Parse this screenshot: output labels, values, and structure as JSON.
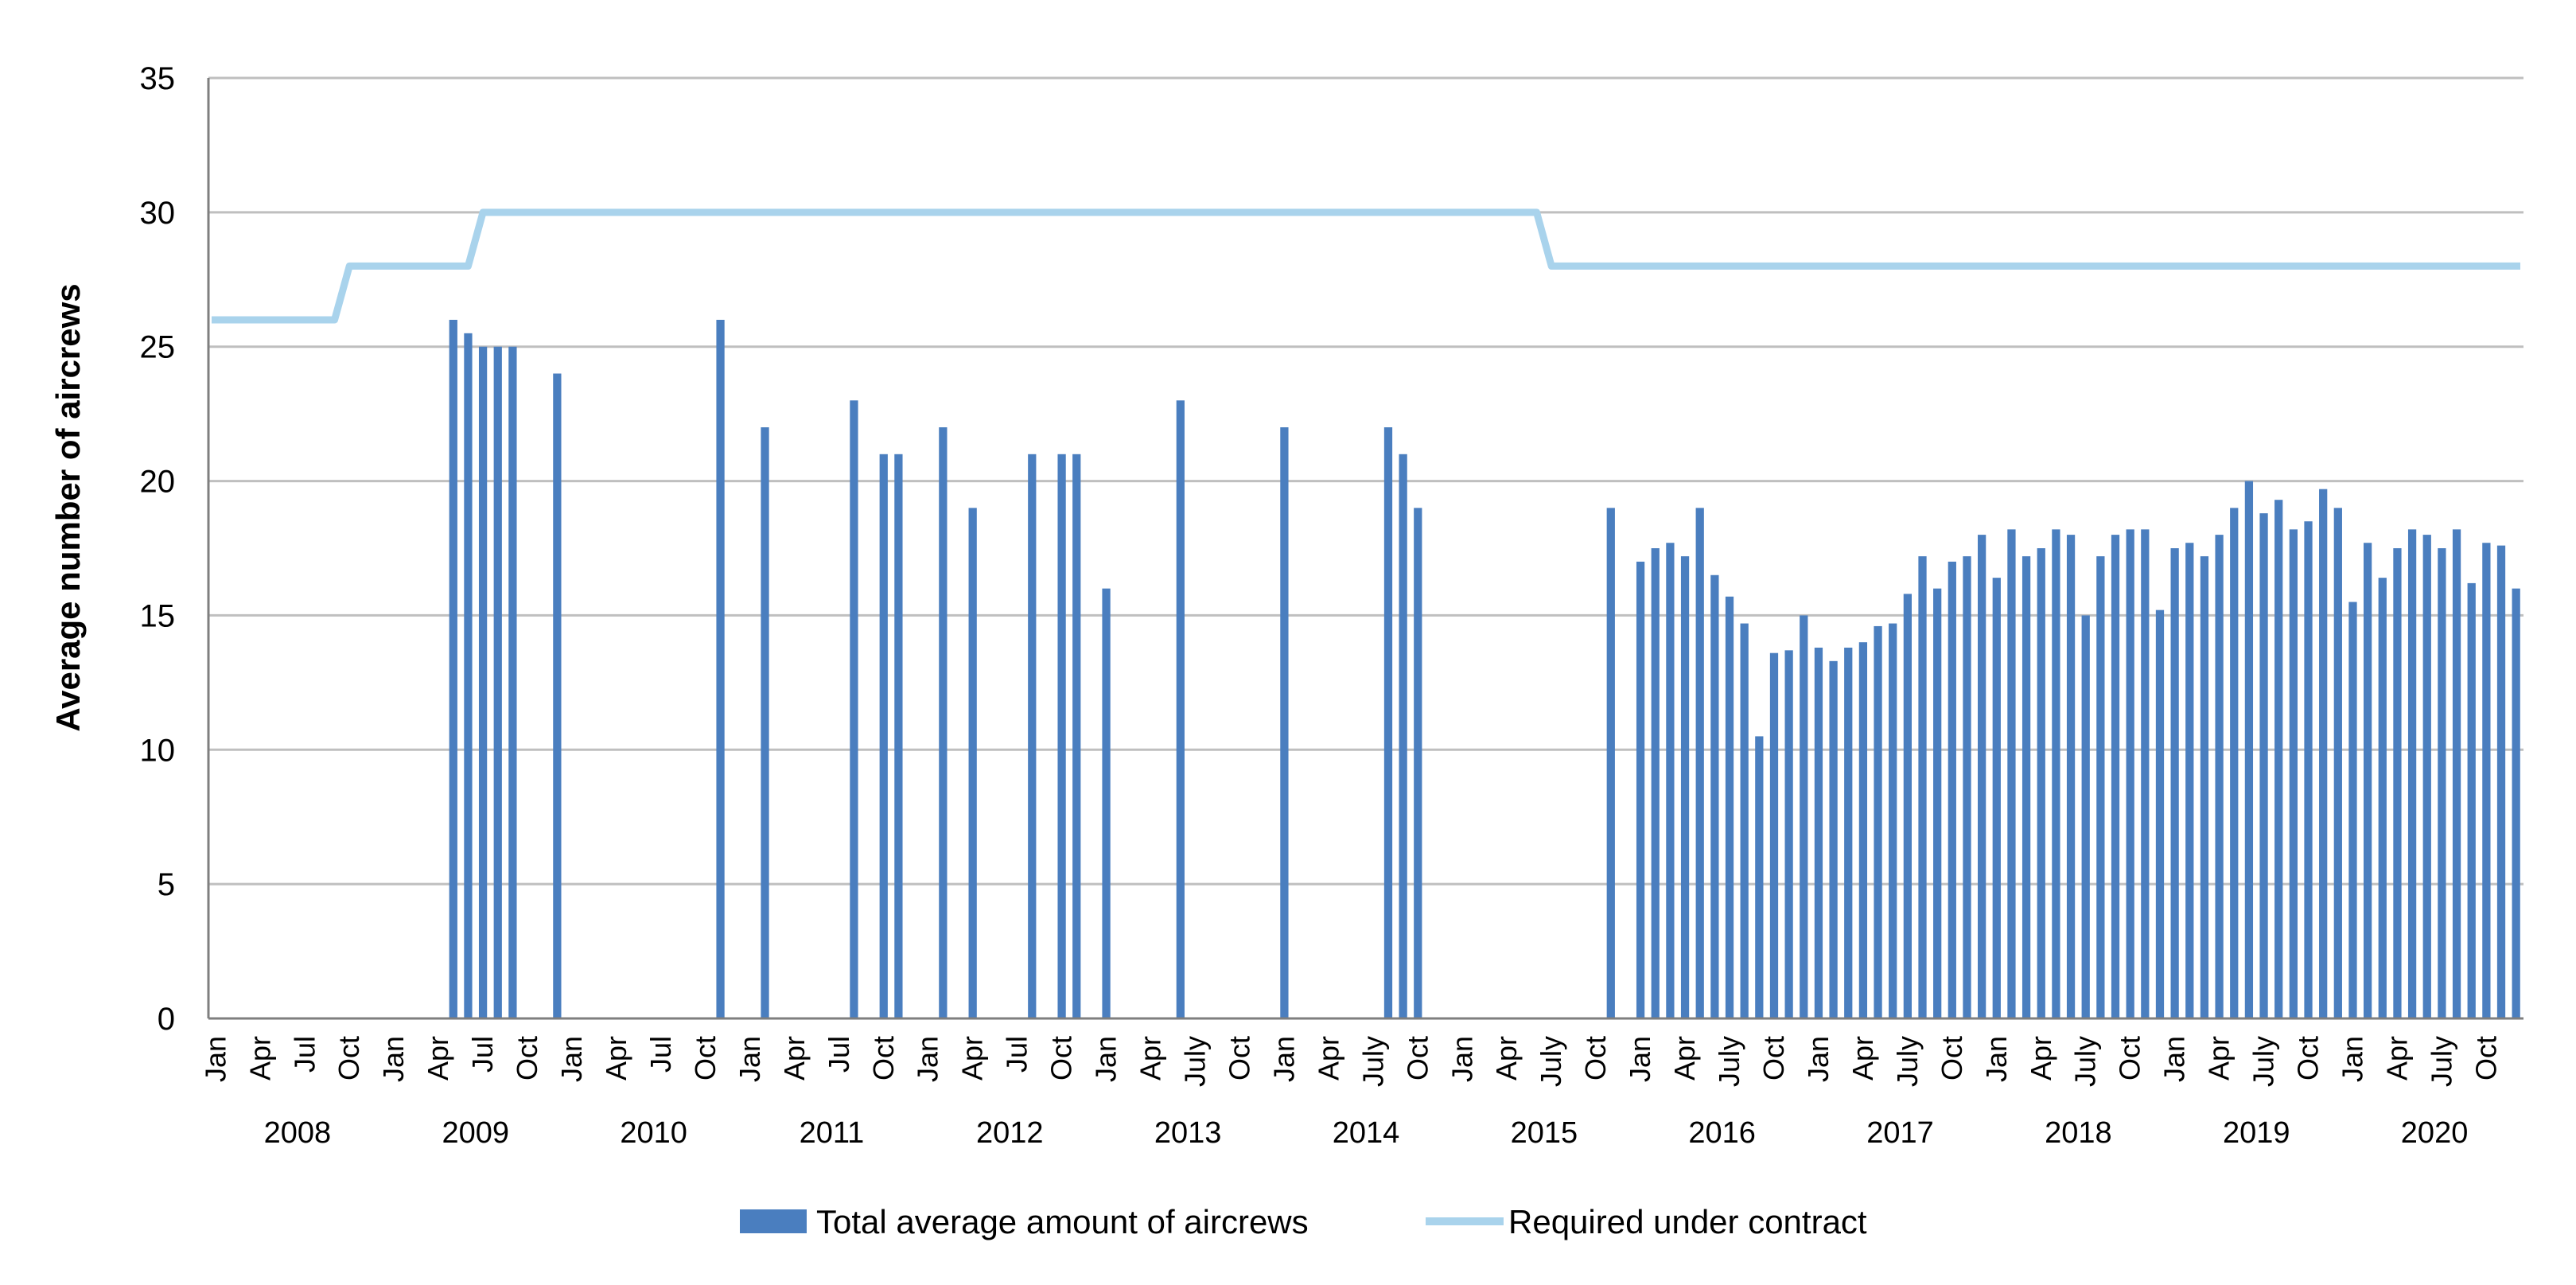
{
  "chart_data": {
    "type": "bar",
    "ylabel": "Average number of aircrews",
    "ylim": [
      0,
      35
    ],
    "yticks": [
      0,
      5,
      10,
      15,
      20,
      25,
      30,
      35
    ],
    "grid": true,
    "legend_position": "bottom",
    "x_start": "2008-01",
    "x_end": "2020-12",
    "colors": {
      "bars": "#4a7ebf",
      "line": "#a9d3ec",
      "grid": "#bfbfbf",
      "axis": "#7f7f7f"
    },
    "tick_labels": [
      {
        "month": "2008-01",
        "label": "Jan"
      },
      {
        "month": "2008-04",
        "label": "Apr"
      },
      {
        "month": "2008-07",
        "label": "Jul"
      },
      {
        "month": "2008-10",
        "label": "Oct"
      },
      {
        "month": "2009-01",
        "label": "Jan"
      },
      {
        "month": "2009-04",
        "label": "Apr"
      },
      {
        "month": "2009-07",
        "label": "Jul"
      },
      {
        "month": "2009-10",
        "label": "Oct"
      },
      {
        "month": "2010-01",
        "label": "Jan"
      },
      {
        "month": "2010-04",
        "label": "Apr"
      },
      {
        "month": "2010-07",
        "label": "Jul"
      },
      {
        "month": "2010-10",
        "label": "Oct"
      },
      {
        "month": "2011-01",
        "label": "Jan"
      },
      {
        "month": "2011-04",
        "label": "Apr"
      },
      {
        "month": "2011-07",
        "label": "Jul"
      },
      {
        "month": "2011-10",
        "label": "Oct"
      },
      {
        "month": "2012-01",
        "label": "Jan"
      },
      {
        "month": "2012-04",
        "label": "Apr"
      },
      {
        "month": "2012-07",
        "label": "Jul"
      },
      {
        "month": "2012-10",
        "label": "Oct"
      },
      {
        "month": "2013-01",
        "label": "Jan"
      },
      {
        "month": "2013-04",
        "label": "Apr"
      },
      {
        "month": "2013-07",
        "label": "July"
      },
      {
        "month": "2013-10",
        "label": "Oct"
      },
      {
        "month": "2014-01",
        "label": "Jan"
      },
      {
        "month": "2014-04",
        "label": "Apr"
      },
      {
        "month": "2014-07",
        "label": "July"
      },
      {
        "month": "2014-10",
        "label": "Oct"
      },
      {
        "month": "2015-01",
        "label": "Jan"
      },
      {
        "month": "2015-04",
        "label": "Apr"
      },
      {
        "month": "2015-07",
        "label": "July"
      },
      {
        "month": "2015-10",
        "label": "Oct"
      },
      {
        "month": "2016-01",
        "label": "Jan"
      },
      {
        "month": "2016-04",
        "label": "Apr"
      },
      {
        "month": "2016-07",
        "label": "July"
      },
      {
        "month": "2016-10",
        "label": "Oct"
      },
      {
        "month": "2017-01",
        "label": "Jan"
      },
      {
        "month": "2017-04",
        "label": "Apr"
      },
      {
        "month": "2017-07",
        "label": "July"
      },
      {
        "month": "2017-10",
        "label": "Oct"
      },
      {
        "month": "2018-01",
        "label": "Jan"
      },
      {
        "month": "2018-04",
        "label": "Apr"
      },
      {
        "month": "2018-07",
        "label": "July"
      },
      {
        "month": "2018-10",
        "label": "Oct"
      },
      {
        "month": "2019-01",
        "label": "Jan"
      },
      {
        "month": "2019-04",
        "label": "Apr"
      },
      {
        "month": "2019-07",
        "label": "July"
      },
      {
        "month": "2019-10",
        "label": "Oct"
      },
      {
        "month": "2020-01",
        "label": "Jan"
      },
      {
        "month": "2020-04",
        "label": "Apr"
      },
      {
        "month": "2020-07",
        "label": "July"
      },
      {
        "month": "2020-10",
        "label": "Oct"
      }
    ],
    "years": [
      "2008",
      "2009",
      "2010",
      "2011",
      "2012",
      "2013",
      "2014",
      "2015",
      "2016",
      "2017",
      "2018",
      "2019",
      "2020"
    ],
    "series": [
      {
        "name": "Total average amount of aircrews",
        "kind": "bar",
        "points": [
          {
            "month": "2009-05",
            "value": 26
          },
          {
            "month": "2009-06",
            "value": 25.5
          },
          {
            "month": "2009-07",
            "value": 25
          },
          {
            "month": "2009-08",
            "value": 25
          },
          {
            "month": "2009-09",
            "value": 25
          },
          {
            "month": "2009-12",
            "value": 24
          },
          {
            "month": "2010-11",
            "value": 26
          },
          {
            "month": "2011-02",
            "value": 22
          },
          {
            "month": "2011-08",
            "value": 23
          },
          {
            "month": "2011-10",
            "value": 21
          },
          {
            "month": "2011-11",
            "value": 21
          },
          {
            "month": "2012-02",
            "value": 22
          },
          {
            "month": "2012-04",
            "value": 19
          },
          {
            "month": "2012-08",
            "value": 21
          },
          {
            "month": "2012-10",
            "value": 21
          },
          {
            "month": "2012-11",
            "value": 21
          },
          {
            "month": "2013-01",
            "value": 16
          },
          {
            "month": "2013-06",
            "value": 23
          },
          {
            "month": "2014-01",
            "value": 22
          },
          {
            "month": "2014-08",
            "value": 22
          },
          {
            "month": "2014-09",
            "value": 21
          },
          {
            "month": "2014-10",
            "value": 19
          },
          {
            "month": "2015-11",
            "value": 19
          },
          {
            "month": "2016-01",
            "value": 17
          },
          {
            "month": "2016-02",
            "value": 17.5
          },
          {
            "month": "2016-03",
            "value": 17.7
          },
          {
            "month": "2016-04",
            "value": 17.2
          },
          {
            "month": "2016-05",
            "value": 19
          },
          {
            "month": "2016-06",
            "value": 16.5
          },
          {
            "month": "2016-07",
            "value": 15.7
          },
          {
            "month": "2016-08",
            "value": 14.7
          },
          {
            "month": "2016-09",
            "value": 10.5
          },
          {
            "month": "2016-10",
            "value": 13.6
          },
          {
            "month": "2016-11",
            "value": 13.7
          },
          {
            "month": "2016-12",
            "value": 15
          },
          {
            "month": "2017-01",
            "value": 13.8
          },
          {
            "month": "2017-02",
            "value": 13.3
          },
          {
            "month": "2017-03",
            "value": 13.8
          },
          {
            "month": "2017-04",
            "value": 14
          },
          {
            "month": "2017-05",
            "value": 14.6
          },
          {
            "month": "2017-06",
            "value": 14.7
          },
          {
            "month": "2017-07",
            "value": 15.8
          },
          {
            "month": "2017-08",
            "value": 17.2
          },
          {
            "month": "2017-09",
            "value": 16
          },
          {
            "month": "2017-10",
            "value": 17
          },
          {
            "month": "2017-11",
            "value": 17.2
          },
          {
            "month": "2017-12",
            "value": 18
          },
          {
            "month": "2018-01",
            "value": 16.4
          },
          {
            "month": "2018-02",
            "value": 18.2
          },
          {
            "month": "2018-03",
            "value": 17.2
          },
          {
            "month": "2018-04",
            "value": 17.5
          },
          {
            "month": "2018-05",
            "value": 18.2
          },
          {
            "month": "2018-06",
            "value": 18
          },
          {
            "month": "2018-07",
            "value": 15
          },
          {
            "month": "2018-08",
            "value": 17.2
          },
          {
            "month": "2018-09",
            "value": 18
          },
          {
            "month": "2018-10",
            "value": 18.2
          },
          {
            "month": "2018-11",
            "value": 18.2
          },
          {
            "month": "2018-12",
            "value": 15.2
          },
          {
            "month": "2019-01",
            "value": 17.5
          },
          {
            "month": "2019-02",
            "value": 17.7
          },
          {
            "month": "2019-03",
            "value": 17.2
          },
          {
            "month": "2019-04",
            "value": 18
          },
          {
            "month": "2019-05",
            "value": 19
          },
          {
            "month": "2019-06",
            "value": 20
          },
          {
            "month": "2019-07",
            "value": 18.8
          },
          {
            "month": "2019-08",
            "value": 19.3
          },
          {
            "month": "2019-09",
            "value": 18.2
          },
          {
            "month": "2019-10",
            "value": 18.5
          },
          {
            "month": "2019-11",
            "value": 19.7
          },
          {
            "month": "2019-12",
            "value": 19
          },
          {
            "month": "2020-01",
            "value": 15.5
          },
          {
            "month": "2020-02",
            "value": 17.7
          },
          {
            "month": "2020-03",
            "value": 16.4
          },
          {
            "month": "2020-04",
            "value": 17.5
          },
          {
            "month": "2020-05",
            "value": 18.2
          },
          {
            "month": "2020-06",
            "value": 18
          },
          {
            "month": "2020-07",
            "value": 17.5
          },
          {
            "month": "2020-08",
            "value": 18.2
          },
          {
            "month": "2020-09",
            "value": 16.2
          },
          {
            "month": "2020-10",
            "value": 17.7
          },
          {
            "month": "2020-11",
            "value": 17.6
          },
          {
            "month": "2020-12",
            "value": 16
          }
        ]
      },
      {
        "name": "Required under contract",
        "kind": "line",
        "points": [
          {
            "month": "2008-01",
            "value": 26
          },
          {
            "month": "2008-09",
            "value": 26
          },
          {
            "month": "2008-10",
            "value": 28
          },
          {
            "month": "2009-06",
            "value": 28
          },
          {
            "month": "2009-07",
            "value": 30
          },
          {
            "month": "2015-06",
            "value": 30
          },
          {
            "month": "2015-07",
            "value": 28
          },
          {
            "month": "2020-12",
            "value": 28
          }
        ]
      }
    ]
  }
}
